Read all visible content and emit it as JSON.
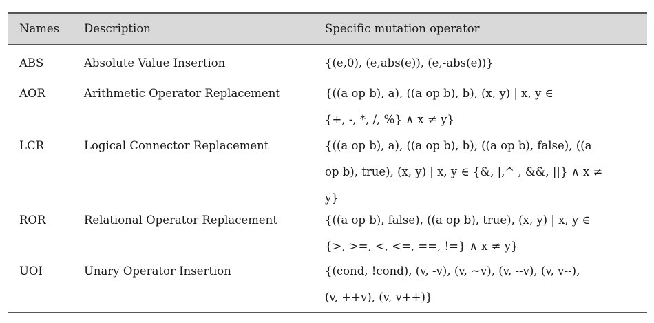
{
  "table": {
    "headers": {
      "names": "Names",
      "description": "Description",
      "operator": "Specific mutation operator"
    },
    "rows": [
      {
        "name": "ABS",
        "description": "Absolute Value Insertion",
        "operator_lines": [
          "{(e,0), (e,abs(e)), (e,-abs(e))}"
        ]
      },
      {
        "name": "AOR",
        "description": "Arithmetic Operator Replacement",
        "operator_lines": [
          "{((a  op  b),   a), ((a  op  b),   b), (x, y)   |   x, y   ∈",
          "{+, -, *, /, %} ∧ x ≠ y}"
        ]
      },
      {
        "name": "LCR",
        "description": "Logical Connector Replacement",
        "operator_lines": [
          "{((a op b),  a), ((a op b),  b), ((a op b),  false), ((a",
          "op b),  true), (x, y) | x, y ∈ {&, |,^ , &&, ||} ∧ x ≠",
          "y}"
        ]
      },
      {
        "name": "ROR",
        "description": "Relational Operator Replacement",
        "operator_lines": [
          "{((a op b),  false), ((a op b),  true), (x, y) | x, y ∈",
          "{>, >=, <, <=, ==, !=} ∧ x ≠ y}"
        ]
      },
      {
        "name": "UOI",
        "description": "Unary Operator Insertion",
        "operator_lines": [
          "{(cond, !cond), (v, -v), (v, ~v), (v, --v), (v, v--),",
          "(v, ++v), (v, v++)}"
        ]
      }
    ]
  }
}
